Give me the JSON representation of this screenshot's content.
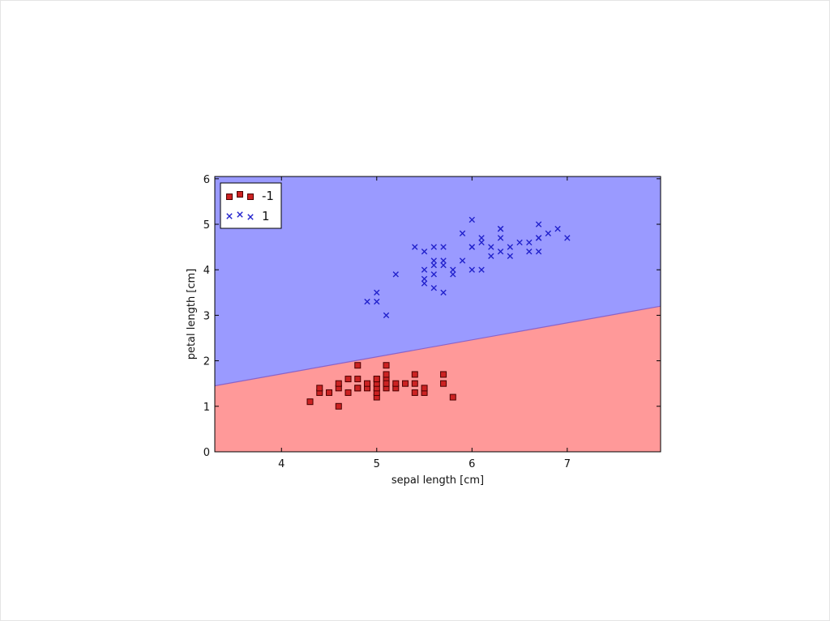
{
  "chart_data": {
    "type": "scatter",
    "title": "",
    "xlabel": "sepal length [cm]",
    "ylabel": "petal length [cm]",
    "xlim": [
      3.3,
      7.98
    ],
    "ylim": [
      0,
      6.05
    ],
    "xticks": [
      4,
      5,
      6,
      7
    ],
    "yticks": [
      0,
      1,
      2,
      3,
      4,
      5,
      6
    ],
    "grid": false,
    "legend_position": "top-left",
    "decision_boundary": {
      "x": [
        3.3,
        7.98
      ],
      "y": [
        1.45,
        3.2
      ],
      "below_class": "-1",
      "above_class": "1"
    },
    "region_colors": {
      "-1": "#ff9999",
      "1": "#9a9aff"
    },
    "boundary_color": "#8a63c8",
    "series": [
      {
        "name": "-1",
        "marker": "square",
        "color": "#cc2222",
        "x": [
          4.3,
          4.4,
          4.4,
          4.5,
          4.6,
          4.6,
          4.6,
          4.7,
          4.7,
          4.8,
          4.8,
          4.8,
          4.8,
          4.9,
          4.9,
          5.0,
          5.0,
          5.0,
          5.0,
          5.0,
          5.0,
          5.1,
          5.1,
          5.1,
          5.1,
          5.1,
          5.1,
          5.2,
          5.2,
          5.3,
          5.4,
          5.4,
          5.4,
          5.5,
          5.5,
          5.7,
          5.7,
          5.8
        ],
        "y": [
          1.1,
          1.3,
          1.4,
          1.3,
          1.0,
          1.4,
          1.5,
          1.3,
          1.6,
          1.4,
          1.6,
          1.9,
          1.4,
          1.4,
          1.5,
          1.2,
          1.3,
          1.4,
          1.5,
          1.6,
          1.6,
          1.4,
          1.5,
          1.6,
          1.7,
          1.9,
          1.5,
          1.4,
          1.5,
          1.5,
          1.3,
          1.5,
          1.7,
          1.3,
          1.4,
          1.5,
          1.7,
          1.2
        ]
      },
      {
        "name": "1",
        "marker": "x",
        "color": "#2222cc",
        "x": [
          4.9,
          5.0,
          5.0,
          5.1,
          5.2,
          5.4,
          5.5,
          5.5,
          5.5,
          5.5,
          5.6,
          5.6,
          5.6,
          5.6,
          5.6,
          5.7,
          5.7,
          5.7,
          5.7,
          5.8,
          5.8,
          5.9,
          5.9,
          6.0,
          6.0,
          6.0,
          6.0,
          6.1,
          6.1,
          6.1,
          6.2,
          6.2,
          6.3,
          6.3,
          6.3,
          6.3,
          6.4,
          6.4,
          6.5,
          6.6,
          6.6,
          6.7,
          6.7,
          6.7,
          6.7,
          6.8,
          6.9,
          7.0
        ],
        "y": [
          3.3,
          3.3,
          3.5,
          3.0,
          3.9,
          4.5,
          3.7,
          3.8,
          4.0,
          4.4,
          3.6,
          3.9,
          4.1,
          4.2,
          4.5,
          3.5,
          4.1,
          4.2,
          4.5,
          3.9,
          4.0,
          4.2,
          4.8,
          4.0,
          4.5,
          4.5,
          5.1,
          4.0,
          4.6,
          4.7,
          4.3,
          4.5,
          4.4,
          4.7,
          4.9,
          4.9,
          4.3,
          4.5,
          4.6,
          4.4,
          4.6,
          4.4,
          4.7,
          5.0,
          4.7,
          4.8,
          4.9,
          4.7
        ]
      }
    ]
  }
}
